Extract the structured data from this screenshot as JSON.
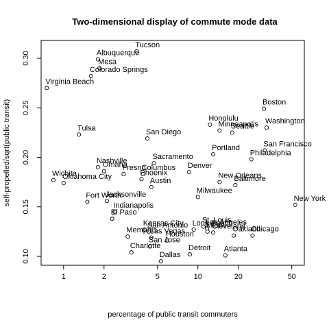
{
  "chart_data": {
    "type": "scatter",
    "title": "Two-dimensional display of commute mode data",
    "xlabel": "percentage of public transit commuters",
    "ylabel": "self-propelled/sqrt(public transit)",
    "x_scale": "log",
    "xlim": [
      0.68,
      62
    ],
    "ylim": [
      0.091,
      0.318
    ],
    "x_ticks": [
      1,
      2,
      5,
      10,
      20,
      50
    ],
    "y_ticks": [
      0.1,
      0.15,
      0.2,
      0.25,
      0.3
    ],
    "x_tick_labels": [
      "1",
      "2",
      "5",
      "10",
      "20",
      "50"
    ],
    "y_tick_labels": [
      "0.10",
      "0.15",
      "0.20",
      "0.25",
      "0.30"
    ],
    "grid": false,
    "points": [
      {
        "label": "Tucson",
        "x": 3.5,
        "y": 0.307
      },
      {
        "label": "Albuquerque",
        "x": 1.8,
        "y": 0.299
      },
      {
        "label": "Mesa",
        "x": 1.85,
        "y": 0.29
      },
      {
        "label": "Colorado Springs",
        "x": 1.6,
        "y": 0.282
      },
      {
        "label": "Virginia Beach",
        "x": 0.75,
        "y": 0.27
      },
      {
        "label": "Tulsa",
        "x": 1.3,
        "y": 0.223
      },
      {
        "label": "San Diego",
        "x": 4.2,
        "y": 0.219
      },
      {
        "label": "Boston",
        "x": 31.0,
        "y": 0.249
      },
      {
        "label": "Honolulu",
        "x": 12.3,
        "y": 0.233
      },
      {
        "label": "Minneapolis",
        "x": 14.5,
        "y": 0.227
      },
      {
        "label": "Seattle",
        "x": 18.0,
        "y": 0.225
      },
      {
        "label": "Washington",
        "x": 32.5,
        "y": 0.23
      },
      {
        "label": "Portland",
        "x": 13.0,
        "y": 0.203
      },
      {
        "label": "San Francisco",
        "x": 31.5,
        "y": 0.207
      },
      {
        "label": "Philadelphia",
        "x": 25.0,
        "y": 0.198
      },
      {
        "label": "Sacramento",
        "x": 4.7,
        "y": 0.194
      },
      {
        "label": "Nashville",
        "x": 1.8,
        "y": 0.19
      },
      {
        "label": "Omaha",
        "x": 2.0,
        "y": 0.186
      },
      {
        "label": "Fresno",
        "x": 2.8,
        "y": 0.183
      },
      {
        "label": "Columbus",
        "x": 3.9,
        "y": 0.183
      },
      {
        "label": "Denver",
        "x": 8.6,
        "y": 0.185
      },
      {
        "label": "Wichita",
        "x": 0.84,
        "y": 0.177
      },
      {
        "label": "Oklahoma City",
        "x": 1.0,
        "y": 0.174
      },
      {
        "label": "Phoenix",
        "x": 3.8,
        "y": 0.178
      },
      {
        "label": "Austin",
        "x": 4.5,
        "y": 0.17
      },
      {
        "label": "New Orleans",
        "x": 14.5,
        "y": 0.175
      },
      {
        "label": "Baltimore",
        "x": 19.0,
        "y": 0.172
      },
      {
        "label": "Milwaukee",
        "x": 10.0,
        "y": 0.16
      },
      {
        "label": "Fort Worth",
        "x": 1.5,
        "y": 0.155
      },
      {
        "label": "Jacksonville",
        "x": 2.1,
        "y": 0.156
      },
      {
        "label": "Indianapolis",
        "x": 2.4,
        "y": 0.145
      },
      {
        "label": "El Paso",
        "x": 2.3,
        "y": 0.138
      },
      {
        "label": "New York",
        "x": 53.0,
        "y": 0.152
      },
      {
        "label": "St. Louis",
        "x": 11.0,
        "y": 0.13
      },
      {
        "label": "Los Angeles",
        "x": 11.7,
        "y": 0.128
      },
      {
        "label": "Long Beach",
        "x": 9.3,
        "y": 0.127
      },
      {
        "label": "Miami",
        "x": 11.8,
        "y": 0.125
      },
      {
        "label": "Cleveland",
        "x": 13.0,
        "y": 0.124
      },
      {
        "label": "Kansas City",
        "x": 4.0,
        "y": 0.127
      },
      {
        "label": "San Antonio",
        "x": 4.3,
        "y": 0.125
      },
      {
        "label": "Oakland",
        "x": 18.5,
        "y": 0.121
      },
      {
        "label": "Chicago",
        "x": 25.5,
        "y": 0.121
      },
      {
        "label": "Memphis",
        "x": 3.0,
        "y": 0.12
      },
      {
        "label": "Las Vegas",
        "x": 4.5,
        "y": 0.119
      },
      {
        "label": "Houston",
        "x": 5.9,
        "y": 0.116
      },
      {
        "label": "San Jose",
        "x": 4.4,
        "y": 0.11
      },
      {
        "label": "Detroit",
        "x": 8.7,
        "y": 0.102
      },
      {
        "label": "Charlotte",
        "x": 3.2,
        "y": 0.104
      },
      {
        "label": "Atlanta",
        "x": 16.0,
        "y": 0.101
      },
      {
        "label": "Dallas",
        "x": 5.3,
        "y": 0.095
      }
    ]
  }
}
